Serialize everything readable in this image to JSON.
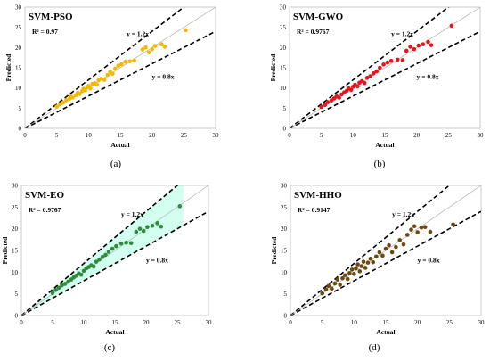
{
  "chart_data": [
    {
      "type": "scatter",
      "title": "SVM-PSO",
      "r2_label": "R² = 0.97",
      "xlabel": "Actual",
      "ylabel": "Predicted",
      "xlim": [
        0,
        30
      ],
      "ylim": [
        0,
        30
      ],
      "xticks": [
        "0",
        "5",
        "10",
        "15",
        "20",
        "25",
        "30"
      ],
      "yticks": [
        "0",
        "5",
        "10",
        "15",
        "20",
        "25",
        "30"
      ],
      "lines": [
        {
          "label": "y = 1.2x",
          "slope": 1.2,
          "style": "dashed"
        },
        {
          "label": "y = 0.8x",
          "slope": 0.8,
          "style": "dashed"
        },
        {
          "label": "",
          "slope": 1.0,
          "style": "solid-thin"
        }
      ],
      "color": "#F5B800",
      "points": [
        [
          5,
          5.4
        ],
        [
          5.5,
          6
        ],
        [
          6,
          6.4
        ],
        [
          6.5,
          7
        ],
        [
          7,
          7.3
        ],
        [
          7.2,
          7.9
        ],
        [
          7.5,
          7.6
        ],
        [
          8,
          8.2
        ],
        [
          8.3,
          8.8
        ],
        [
          8.6,
          8.5
        ],
        [
          9,
          9.2
        ],
        [
          9.2,
          9.8
        ],
        [
          9.5,
          9.4
        ],
        [
          9.8,
          10.2
        ],
        [
          10,
          10.5
        ],
        [
          10.3,
          9.9
        ],
        [
          10.6,
          11
        ],
        [
          11,
          11.2
        ],
        [
          11.3,
          10.8
        ],
        [
          11.6,
          11.9
        ],
        [
          12,
          12.3
        ],
        [
          12.5,
          12
        ],
        [
          13,
          13.2
        ],
        [
          13.4,
          14
        ],
        [
          13.8,
          13.5
        ],
        [
          14.2,
          14.8
        ],
        [
          14.7,
          15.5
        ],
        [
          15.2,
          15.9
        ],
        [
          15.8,
          16.5
        ],
        [
          16.5,
          16.6
        ],
        [
          17.2,
          16.8
        ],
        [
          18.5,
          19.5
        ],
        [
          19,
          20
        ],
        [
          19.5,
          18.8
        ],
        [
          20,
          19.6
        ],
        [
          20.5,
          20.4
        ],
        [
          21.5,
          20.8
        ],
        [
          22,
          20.2
        ],
        [
          25.3,
          24.3
        ]
      ],
      "caption": "(a)"
    },
    {
      "type": "scatter",
      "title": "SVM-GWO",
      "r2_label": "R² = 0.9767",
      "xlabel": "Actual",
      "ylabel": "Predicted",
      "xlim": [
        0,
        30
      ],
      "ylim": [
        0,
        30
      ],
      "xticks": [
        "0",
        "5",
        "10",
        "15",
        "20",
        "25",
        "30"
      ],
      "yticks": [
        "0",
        "5",
        "10",
        "15",
        "20",
        "25",
        "30"
      ],
      "lines": [
        {
          "label": "y = 1.2x",
          "slope": 1.2,
          "style": "dashed"
        },
        {
          "label": "y = 0.8x",
          "slope": 0.8,
          "style": "dashed"
        },
        {
          "label": "",
          "slope": 1.0,
          "style": "solid-thin"
        }
      ],
      "color": "#E8141C",
      "points": [
        [
          5,
          5.3
        ],
        [
          5.6,
          5.8
        ],
        [
          6,
          6.5
        ],
        [
          6.6,
          6.9
        ],
        [
          7,
          7.4
        ],
        [
          7.4,
          7.9
        ],
        [
          7.8,
          7.6
        ],
        [
          8.2,
          8.4
        ],
        [
          8.6,
          8.9
        ],
        [
          9,
          9.3
        ],
        [
          9.3,
          9.9
        ],
        [
          9.7,
          9.5
        ],
        [
          10,
          10.3
        ],
        [
          10.3,
          10.8
        ],
        [
          10.7,
          10.4
        ],
        [
          11,
          11.3
        ],
        [
          11.4,
          11.7
        ],
        [
          11.8,
          11.2
        ],
        [
          12.2,
          12.5
        ],
        [
          12.7,
          12.9
        ],
        [
          13.2,
          13.6
        ],
        [
          13.7,
          14.1
        ],
        [
          14.2,
          15
        ],
        [
          14.8,
          15.8
        ],
        [
          15.4,
          16.3
        ],
        [
          16,
          16.7
        ],
        [
          17,
          17
        ],
        [
          17.8,
          16.9
        ],
        [
          18.4,
          19.2
        ],
        [
          19,
          20.2
        ],
        [
          19.6,
          19.6
        ],
        [
          20.3,
          20.5
        ],
        [
          21,
          20.8
        ],
        [
          21.8,
          21.4
        ],
        [
          22.3,
          20.6
        ],
        [
          25.5,
          25.4
        ]
      ],
      "caption": "(b)"
    },
    {
      "type": "scatter",
      "title": "SVM-EO",
      "r2_label": "R² = 0.9767",
      "xlabel": "Actual",
      "ylabel": "Predicted",
      "xlim": [
        0,
        30
      ],
      "ylim": [
        0,
        30
      ],
      "xticks": [
        "0",
        "5",
        "10",
        "15",
        "20",
        "25",
        "30"
      ],
      "yticks": [
        "0",
        "5",
        "10",
        "15",
        "20",
        "25",
        "30"
      ],
      "lines": [
        {
          "label": "y = 1.2x",
          "slope": 1.2,
          "style": "dashed"
        },
        {
          "label": "y = 0.8x",
          "slope": 0.8,
          "style": "dashed"
        },
        {
          "label": "",
          "slope": 1.0,
          "style": "solid-thin"
        }
      ],
      "color": "#2E8B3A",
      "band_color": "#7FFFD4",
      "points": [
        [
          5,
          5.2
        ],
        [
          5.5,
          5.9
        ],
        [
          6,
          6.4
        ],
        [
          6.5,
          7
        ],
        [
          7,
          7.3
        ],
        [
          7.5,
          7.8
        ],
        [
          8,
          8.3
        ],
        [
          8.4,
          8.8
        ],
        [
          8.8,
          9.2
        ],
        [
          9.2,
          9.7
        ],
        [
          9.6,
          9.4
        ],
        [
          10,
          10.3
        ],
        [
          10.4,
          10.9
        ],
        [
          10.8,
          11.2
        ],
        [
          11.2,
          11.6
        ],
        [
          11.6,
          11.3
        ],
        [
          12,
          12.4
        ],
        [
          12.5,
          12.9
        ],
        [
          13,
          13.5
        ],
        [
          13.5,
          14
        ],
        [
          14,
          14.7
        ],
        [
          14.6,
          15.4
        ],
        [
          15.2,
          16
        ],
        [
          16,
          16.6
        ],
        [
          16.8,
          16.8
        ],
        [
          17.6,
          16.7
        ],
        [
          18.4,
          19.3
        ],
        [
          19,
          20
        ],
        [
          19.6,
          19.5
        ],
        [
          20.2,
          20.4
        ],
        [
          21,
          20.7
        ],
        [
          21.8,
          21.3
        ],
        [
          22.4,
          20.5
        ],
        [
          25.4,
          25.2
        ]
      ],
      "caption": "(c)"
    },
    {
      "type": "scatter",
      "title": "SVM-HHO",
      "r2_label": "R² = 0.9147",
      "xlabel": "Actual",
      "ylabel": "Predicted",
      "xlim": [
        0,
        30
      ],
      "ylim": [
        0,
        30
      ],
      "xticks": [
        "0",
        "5",
        "10",
        "15",
        "20",
        "25",
        "30"
      ],
      "yticks": [
        "0",
        "5",
        "10",
        "15",
        "20",
        "25",
        "30"
      ],
      "lines": [
        {
          "label": "y = 1.2x",
          "slope": 1.2,
          "style": "dashed"
        },
        {
          "label": "y = 0.8x",
          "slope": 0.8,
          "style": "dashed"
        },
        {
          "label": "",
          "slope": 1.0,
          "style": "solid-thin"
        }
      ],
      "color": "#6B4A10",
      "points": [
        [
          5,
          5.1
        ],
        [
          5.6,
          6
        ],
        [
          6,
          6.8
        ],
        [
          6.5,
          6.2
        ],
        [
          7,
          7.4
        ],
        [
          7.4,
          8.3
        ],
        [
          7.8,
          7.1
        ],
        [
          8.2,
          8.6
        ],
        [
          8.6,
          9.3
        ],
        [
          9,
          8.4
        ],
        [
          9.3,
          9.8
        ],
        [
          9.7,
          10.6
        ],
        [
          10,
          9.6
        ],
        [
          10.3,
          10.9
        ],
        [
          10.6,
          11.8
        ],
        [
          10.9,
          10.2
        ],
        [
          11.2,
          11.4
        ],
        [
          11.5,
          12.4
        ],
        [
          11.8,
          11
        ],
        [
          12.2,
          12.2
        ],
        [
          12.6,
          13.1
        ],
        [
          13,
          12.3
        ],
        [
          13.5,
          13.6
        ],
        [
          14,
          14.6
        ],
        [
          14.5,
          13.8
        ],
        [
          15,
          15.4
        ],
        [
          15.5,
          16.2
        ],
        [
          16,
          14.6
        ],
        [
          16.6,
          15.8
        ],
        [
          17.2,
          17.4
        ],
        [
          17.8,
          16.4
        ],
        [
          18.4,
          18.6
        ],
        [
          19,
          19.8
        ],
        [
          19.5,
          20.6
        ],
        [
          20,
          19.2
        ],
        [
          20.6,
          20.3
        ],
        [
          21.2,
          20.4
        ],
        [
          22,
          19.3
        ],
        [
          25.6,
          21
        ]
      ],
      "caption": "(d)"
    }
  ]
}
